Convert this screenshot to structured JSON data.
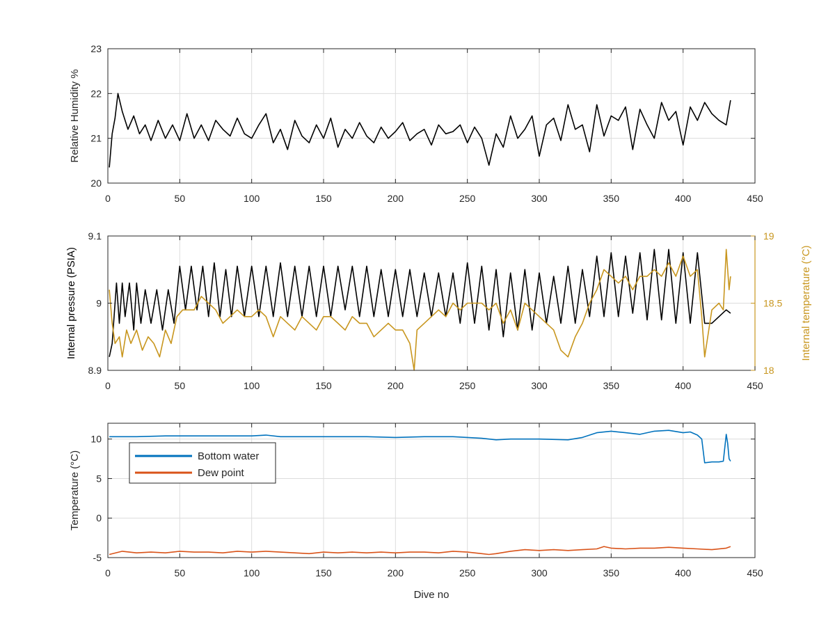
{
  "chart_data": [
    {
      "type": "line",
      "xlabel": "",
      "ylabel": "Relative Humidity %",
      "xlim": [
        0,
        450
      ],
      "ylim": [
        20,
        23
      ],
      "xticks": [
        0,
        50,
        100,
        150,
        200,
        250,
        300,
        350,
        400,
        450
      ],
      "yticks": [
        20,
        21,
        22,
        23
      ],
      "grid": true,
      "series": [
        {
          "color": "#000000",
          "x": [
            1,
            3,
            5,
            7,
            10,
            14,
            18,
            22,
            26,
            30,
            35,
            40,
            45,
            50,
            55,
            60,
            65,
            70,
            75,
            80,
            85,
            90,
            95,
            100,
            105,
            110,
            115,
            120,
            125,
            130,
            135,
            140,
            145,
            150,
            155,
            160,
            165,
            170,
            175,
            180,
            185,
            190,
            195,
            200,
            205,
            210,
            215,
            220,
            225,
            230,
            235,
            240,
            245,
            250,
            255,
            260,
            265,
            270,
            275,
            280,
            285,
            290,
            295,
            300,
            305,
            310,
            315,
            320,
            325,
            330,
            335,
            340,
            345,
            350,
            355,
            360,
            365,
            370,
            375,
            380,
            385,
            390,
            395,
            400,
            405,
            410,
            415,
            420,
            425,
            430,
            433
          ],
          "y": [
            20.35,
            21.1,
            21.45,
            22.0,
            21.6,
            21.2,
            21.5,
            21.1,
            21.3,
            20.95,
            21.4,
            21.0,
            21.3,
            20.95,
            21.55,
            21.0,
            21.3,
            20.95,
            21.4,
            21.2,
            21.05,
            21.45,
            21.1,
            21.0,
            21.3,
            21.55,
            20.9,
            21.2,
            20.75,
            21.4,
            21.05,
            20.9,
            21.3,
            21.0,
            21.45,
            20.8,
            21.2,
            21.0,
            21.35,
            21.05,
            20.9,
            21.25,
            21.0,
            21.15,
            21.35,
            20.95,
            21.1,
            21.2,
            20.85,
            21.3,
            21.1,
            21.15,
            21.3,
            20.9,
            21.25,
            21.0,
            20.4,
            21.1,
            20.8,
            21.5,
            21.0,
            21.2,
            21.5,
            20.6,
            21.3,
            21.45,
            20.95,
            21.75,
            21.2,
            21.3,
            20.7,
            21.75,
            21.05,
            21.5,
            21.4,
            21.7,
            20.75,
            21.65,
            21.3,
            21.0,
            21.8,
            21.4,
            21.6,
            20.85,
            21.7,
            21.4,
            21.8,
            21.55,
            21.4,
            21.3,
            21.85
          ]
        }
      ]
    },
    {
      "type": "line",
      "xlabel": "",
      "ylabel": "Internal pressure (PSIA)",
      "y2label": "Internal temperature (°C)",
      "xlim": [
        0,
        450
      ],
      "ylim": [
        8.9,
        9.1
      ],
      "y2lim": [
        18,
        19
      ],
      "xticks": [
        0,
        50,
        100,
        150,
        200,
        250,
        300,
        350,
        400,
        450
      ],
      "yticks": [
        8.9,
        9,
        9.1
      ],
      "y2ticks": [
        18,
        18.5,
        19
      ],
      "grid": true,
      "series": [
        {
          "axis": "left",
          "color": "#000000",
          "x": [
            1,
            3,
            6,
            8,
            10,
            12,
            15,
            18,
            20,
            23,
            26,
            30,
            34,
            38,
            42,
            46,
            50,
            54,
            58,
            62,
            66,
            70,
            74,
            78,
            82,
            86,
            90,
            95,
            100,
            105,
            110,
            115,
            120,
            125,
            130,
            135,
            140,
            145,
            150,
            155,
            160,
            165,
            170,
            175,
            180,
            185,
            190,
            195,
            200,
            205,
            210,
            215,
            220,
            225,
            230,
            235,
            240,
            245,
            250,
            255,
            260,
            265,
            270,
            275,
            280,
            285,
            290,
            295,
            300,
            305,
            310,
            315,
            320,
            325,
            330,
            335,
            340,
            345,
            350,
            355,
            360,
            365,
            370,
            375,
            380,
            385,
            390,
            395,
            400,
            405,
            410,
            415,
            420,
            425,
            430,
            433
          ],
          "y": [
            8.92,
            8.94,
            9.03,
            8.97,
            9.03,
            8.98,
            9.03,
            8.96,
            9.03,
            8.97,
            9.02,
            8.97,
            9.02,
            8.96,
            9.02,
            8.97,
            9.055,
            8.99,
            9.055,
            8.99,
            9.055,
            8.98,
            9.06,
            8.98,
            9.05,
            8.98,
            9.055,
            8.98,
            9.055,
            8.98,
            9.055,
            8.98,
            9.06,
            8.98,
            9.055,
            8.98,
            9.055,
            8.98,
            9.055,
            8.98,
            9.055,
            8.99,
            9.055,
            8.98,
            9.055,
            8.98,
            9.05,
            8.98,
            9.05,
            8.98,
            9.05,
            8.98,
            9.045,
            8.98,
            9.045,
            8.98,
            9.045,
            8.97,
            9.06,
            8.97,
            9.055,
            8.96,
            9.05,
            8.95,
            9.045,
            8.96,
            9.05,
            8.96,
            9.045,
            8.97,
            9.04,
            8.97,
            9.055,
            8.97,
            9.05,
            8.98,
            9.07,
            8.98,
            9.075,
            8.98,
            9.07,
            8.985,
            9.075,
            8.975,
            9.08,
            8.975,
            9.08,
            8.97,
            9.075,
            8.97,
            9.075,
            8.97,
            8.97,
            8.98,
            8.99,
            8.985
          ]
        },
        {
          "axis": "right",
          "color": "#C8961E",
          "x": [
            1,
            3,
            5,
            8,
            10,
            13,
            16,
            20,
            24,
            28,
            32,
            36,
            40,
            44,
            48,
            52,
            56,
            60,
            65,
            70,
            75,
            80,
            85,
            90,
            95,
            100,
            105,
            110,
            115,
            120,
            125,
            130,
            135,
            140,
            145,
            150,
            155,
            160,
            165,
            170,
            175,
            180,
            185,
            190,
            195,
            200,
            205,
            210,
            213,
            215,
            220,
            225,
            230,
            235,
            240,
            245,
            250,
            255,
            260,
            265,
            270,
            275,
            280,
            285,
            290,
            295,
            300,
            305,
            310,
            315,
            320,
            325,
            330,
            335,
            340,
            345,
            350,
            355,
            360,
            365,
            370,
            375,
            380,
            385,
            390,
            395,
            400,
            405,
            410,
            413,
            415,
            420,
            425,
            428,
            430,
            432,
            433
          ],
          "y": [
            18.6,
            18.35,
            18.2,
            18.25,
            18.1,
            18.3,
            18.2,
            18.3,
            18.15,
            18.25,
            18.2,
            18.1,
            18.3,
            18.2,
            18.4,
            18.45,
            18.45,
            18.45,
            18.55,
            18.5,
            18.45,
            18.35,
            18.4,
            18.45,
            18.4,
            18.4,
            18.45,
            18.4,
            18.25,
            18.4,
            18.35,
            18.3,
            18.4,
            18.35,
            18.3,
            18.4,
            18.4,
            18.35,
            18.3,
            18.4,
            18.35,
            18.35,
            18.25,
            18.3,
            18.35,
            18.3,
            18.3,
            18.2,
            18.0,
            18.3,
            18.35,
            18.4,
            18.45,
            18.4,
            18.5,
            18.45,
            18.5,
            18.5,
            18.5,
            18.45,
            18.5,
            18.35,
            18.45,
            18.3,
            18.5,
            18.45,
            18.4,
            18.35,
            18.3,
            18.15,
            18.1,
            18.25,
            18.35,
            18.5,
            18.6,
            18.75,
            18.7,
            18.65,
            18.7,
            18.6,
            18.7,
            18.7,
            18.75,
            18.7,
            18.8,
            18.7,
            18.85,
            18.7,
            18.75,
            18.4,
            18.1,
            18.45,
            18.5,
            18.45,
            18.9,
            18.6,
            18.7
          ]
        }
      ]
    },
    {
      "type": "line",
      "xlabel": "Dive no",
      "ylabel": "Temperature (°C)",
      "xlim": [
        0,
        450
      ],
      "ylim": [
        -5,
        12
      ],
      "xticks": [
        0,
        50,
        100,
        150,
        200,
        250,
        300,
        350,
        400,
        450
      ],
      "yticks": [
        -5,
        0,
        5,
        10
      ],
      "grid": true,
      "legend": "top-left",
      "series": [
        {
          "name": "Bottom water",
          "color": "#0072BD",
          "x": [
            1,
            20,
            40,
            60,
            80,
            100,
            110,
            120,
            140,
            160,
            180,
            200,
            220,
            240,
            260,
            270,
            280,
            300,
            320,
            330,
            340,
            350,
            360,
            370,
            380,
            390,
            400,
            405,
            410,
            413,
            415,
            420,
            425,
            428,
            430,
            431,
            432,
            433
          ],
          "y": [
            10.3,
            10.3,
            10.4,
            10.4,
            10.4,
            10.4,
            10.5,
            10.3,
            10.3,
            10.3,
            10.3,
            10.2,
            10.3,
            10.3,
            10.1,
            9.9,
            10.0,
            10.0,
            9.9,
            10.2,
            10.8,
            11.0,
            10.8,
            10.6,
            11.0,
            11.1,
            10.8,
            10.9,
            10.5,
            10.0,
            7.0,
            7.1,
            7.1,
            7.2,
            10.6,
            9.5,
            7.5,
            7.2
          ]
        },
        {
          "name": "Dew point",
          "color": "#D95319",
          "x": [
            1,
            10,
            20,
            30,
            40,
            50,
            60,
            70,
            80,
            90,
            100,
            110,
            120,
            130,
            140,
            150,
            160,
            170,
            180,
            190,
            200,
            210,
            220,
            230,
            240,
            250,
            260,
            265,
            270,
            280,
            290,
            300,
            310,
            320,
            330,
            340,
            345,
            350,
            360,
            370,
            380,
            390,
            400,
            410,
            420,
            430,
            433
          ],
          "y": [
            -4.6,
            -4.2,
            -4.4,
            -4.3,
            -4.4,
            -4.2,
            -4.3,
            -4.3,
            -4.4,
            -4.2,
            -4.3,
            -4.2,
            -4.3,
            -4.4,
            -4.5,
            -4.3,
            -4.4,
            -4.3,
            -4.4,
            -4.3,
            -4.4,
            -4.3,
            -4.3,
            -4.4,
            -4.2,
            -4.3,
            -4.5,
            -4.6,
            -4.5,
            -4.2,
            -4.0,
            -4.1,
            -4.0,
            -4.1,
            -4.0,
            -3.9,
            -3.6,
            -3.8,
            -3.9,
            -3.8,
            -3.8,
            -3.7,
            -3.8,
            -3.9,
            -4.0,
            -3.8,
            -3.6
          ]
        }
      ]
    }
  ]
}
